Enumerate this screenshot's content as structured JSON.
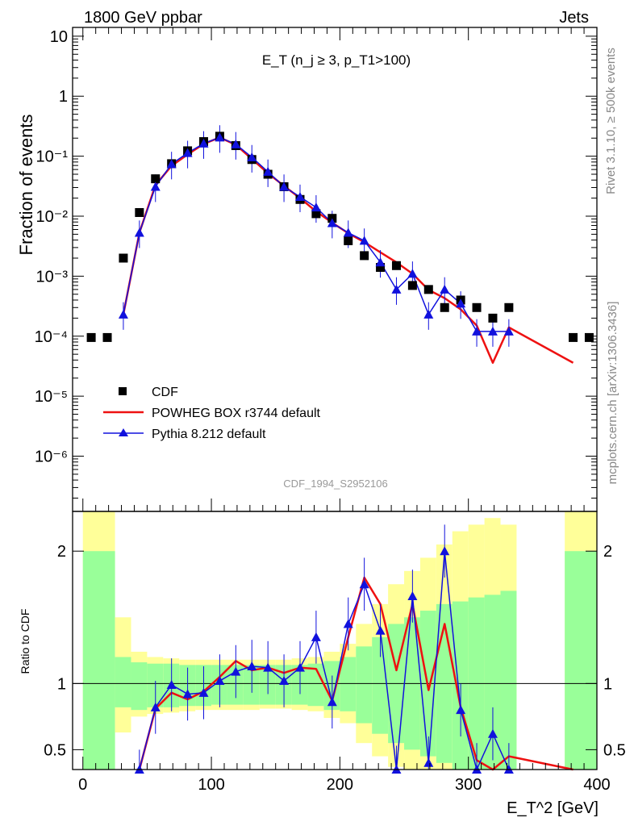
{
  "header": {
    "left": "1800 GeV ppbar",
    "right": "Jets"
  },
  "side_labels": {
    "rivet": "Rivet 3.1.10, ≥ 500k events",
    "mcplots": "mcplots.cern.ch [arXiv:1306.3436]"
  },
  "watermark": "CDF_1994_S2952106",
  "chart_data": [
    {
      "type": "scatter",
      "title": "E_T (n_j ≥ 3, p_T1>100)",
      "ylabel": "Fraction of events",
      "yscale": "log",
      "ylim": [
        1.2e-07,
        14
      ],
      "xlim": [
        -8,
        400
      ],
      "ytick_labels": [
        "10",
        "1",
        "10⁻¹",
        "10⁻²",
        "10⁻³",
        "10⁻⁴",
        "10⁻⁵",
        "10⁻⁶"
      ],
      "legend": {
        "position": "bottom-left",
        "entries": [
          "CDF",
          "POWHEG BOX r3744 default",
          "Pythia 8.212 default"
        ]
      },
      "colors": {
        "CDF": "#000000",
        "POWHEG": "#ee1111",
        "Pythia": "#1111dd"
      },
      "series": [
        {
          "name": "CDF",
          "x": [
            6.5,
            19,
            31.5,
            44,
            56.5,
            69,
            81.5,
            94,
            106.5,
            119,
            131.5,
            144,
            156.5,
            169,
            181.5,
            194,
            206.5,
            219,
            231.5,
            244,
            256.5,
            269,
            281.5,
            294,
            306.5,
            319,
            331.5,
            381.5,
            394
          ],
          "y": [
            9.5e-05,
            9.5e-05,
            0.002,
            0.0115,
            0.042,
            0.075,
            0.123,
            0.175,
            0.215,
            0.15,
            0.088,
            0.05,
            0.031,
            0.019,
            0.011,
            0.0092,
            0.0039,
            0.0022,
            0.0014,
            0.0015,
            0.0007,
            0.0006,
            0.0003,
            0.0004,
            0.0003,
            0.0002,
            0.0003,
            9.5e-05,
            9.5e-05
          ]
        },
        {
          "name": "POWHEG BOX r3744 default",
          "x": [
            31.5,
            44,
            56.5,
            69,
            81.5,
            94,
            106.5,
            119,
            131.5,
            144,
            156.5,
            169,
            181.5,
            194,
            206.5,
            219,
            231.5,
            244,
            256.5,
            269,
            281.5,
            294,
            306.5,
            319,
            331.5,
            381.5
          ],
          "y": [
            0.00023,
            0.0053,
            0.033,
            0.069,
            0.107,
            0.16,
            0.205,
            0.155,
            0.09,
            0.052,
            0.032,
            0.02,
            0.012,
            0.0078,
            0.0052,
            0.0037,
            0.0025,
            0.0017,
            0.0011,
            0.00059,
            0.00043,
            0.00028,
            0.00015,
            3.6e-05,
            0.00014,
            3.6e-05
          ]
        },
        {
          "name": "Pythia 8.212 default",
          "x": [
            31.5,
            44,
            56.5,
            69,
            81.5,
            94,
            106.5,
            119,
            131.5,
            144,
            156.5,
            169,
            181.5,
            194,
            206.5,
            219,
            231.5,
            244,
            256.5,
            269,
            281.5,
            294,
            306.5,
            319,
            331.5
          ],
          "y": [
            0.00023,
            0.0053,
            0.031,
            0.074,
            0.113,
            0.163,
            0.205,
            0.158,
            0.096,
            0.055,
            0.031,
            0.021,
            0.014,
            0.0077,
            0.0053,
            0.0039,
            0.0017,
            0.0006,
            0.0011,
            0.00023,
            0.0006,
            0.00035,
            0.00012,
            0.00012,
            0.00012
          ]
        }
      ]
    },
    {
      "type": "line",
      "ylabel": "Ratio to CDF",
      "xlabel": "E_T^2 [GeV]",
      "ylim": [
        0.35,
        2.3
      ],
      "xlim": [
        -8,
        400
      ],
      "xtick_labels": [
        "0",
        "100",
        "200",
        "300",
        "400"
      ],
      "ytick_labels": [
        "0.5",
        "1",
        "2"
      ],
      "reference_line": 1,
      "uncertainty_bands": {
        "edges": [
          0,
          25,
          37.5,
          50,
          62.5,
          75,
          87.5,
          100,
          112.5,
          125,
          137.5,
          150,
          162.5,
          175,
          187.5,
          200,
          212.5,
          225,
          237.5,
          250,
          262.5,
          275,
          287.5,
          300,
          312.5,
          325,
          337.5,
          375,
          400
        ],
        "inner_lo": [
          0.35,
          0.82,
          0.8,
          0.82,
          0.82,
          0.83,
          0.83,
          0.84,
          0.84,
          0.84,
          0.84,
          0.84,
          0.84,
          0.83,
          0.8,
          0.79,
          0.7,
          0.62,
          0.55,
          0.5,
          0.45,
          0.4,
          0.35,
          0.35,
          0.35,
          0.35,
          null,
          0.35
        ],
        "inner_hi": [
          2.0,
          1.2,
          1.16,
          1.15,
          1.15,
          1.14,
          1.14,
          1.14,
          1.14,
          1.14,
          1.14,
          1.14,
          1.14,
          1.15,
          1.17,
          1.2,
          1.28,
          1.35,
          1.45,
          1.5,
          1.55,
          1.6,
          1.62,
          1.65,
          1.67,
          1.7,
          null,
          2.0
        ],
        "outer_lo": [
          0.35,
          0.63,
          0.75,
          0.77,
          0.78,
          0.79,
          0.8,
          0.8,
          0.8,
          0.8,
          0.81,
          0.81,
          0.8,
          0.79,
          0.74,
          0.7,
          0.55,
          0.45,
          0.37,
          0.35,
          0.35,
          0.35,
          0.35,
          0.35,
          0.35,
          0.35,
          null,
          0.35
        ],
        "outer_hi": [
          2.3,
          1.5,
          1.24,
          1.2,
          1.19,
          1.18,
          1.18,
          1.18,
          1.18,
          1.18,
          1.18,
          1.18,
          1.19,
          1.2,
          1.24,
          1.3,
          1.45,
          1.6,
          1.75,
          1.85,
          1.95,
          2.05,
          2.15,
          2.2,
          2.25,
          2.2,
          null,
          2.3
        ]
      },
      "series": [
        {
          "name": "POWHEG BOX r3744 default",
          "x": [
            44,
            56.5,
            69,
            81.5,
            94,
            106.5,
            119,
            131.5,
            144,
            156.5,
            169,
            181.5,
            194,
            206.5,
            219,
            231.5,
            244,
            256.5,
            269,
            281.5,
            294,
            306.5,
            319,
            331.5,
            381.5
          ],
          "y": [
            0.3,
            0.81,
            0.93,
            0.88,
            0.94,
            1.05,
            1.17,
            1.1,
            1.12,
            1.08,
            1.12,
            1.11,
            0.87,
            1.35,
            1.8,
            1.6,
            1.1,
            1.6,
            0.95,
            1.45,
            0.82,
            0.42,
            0.15,
            0.45,
            0.35
          ]
        },
        {
          "name": "Pythia 8.212 default",
          "x": [
            44,
            56.5,
            69,
            81.5,
            94,
            106.5,
            119,
            131.5,
            144,
            156.5,
            169,
            181.5,
            194,
            206.5,
            219,
            231.5,
            244,
            256.5,
            269,
            281.5,
            294,
            306.5,
            319,
            331.5
          ],
          "y": [
            0.3,
            0.82,
            0.99,
            0.92,
            0.93,
            1.02,
            1.09,
            1.13,
            1.12,
            1.02,
            1.12,
            1.35,
            0.86,
            1.45,
            1.75,
            1.4,
            0.33,
            1.66,
            0.4,
            2.0,
            0.8,
            0.35,
            0.62,
            0.35
          ]
        }
      ]
    }
  ]
}
